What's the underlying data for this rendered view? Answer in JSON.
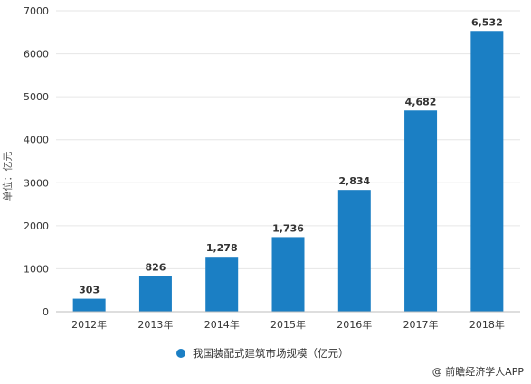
{
  "chart_data": {
    "type": "bar",
    "categories": [
      "2012年",
      "2013年",
      "2014年",
      "2015年",
      "2016年",
      "2017年",
      "2018年"
    ],
    "series": [
      {
        "name": "我国装配式建筑市场规模（亿元）",
        "values": [
          303,
          826,
          1278,
          1736,
          2834,
          4682,
          6532
        ],
        "labels": [
          "303",
          "826",
          "1,278",
          "1,736",
          "2,834",
          "4,682",
          "6,532"
        ],
        "color": "#1b7fc4"
      }
    ],
    "ylabel": "单位：亿元",
    "ylim": [
      0,
      7000
    ],
    "yticks": [
      "0",
      "1000",
      "2000",
      "3000",
      "4000",
      "5000",
      "6000",
      "7000"
    ],
    "grid": true,
    "legend": "bottom"
  },
  "credit": "@ 前瞻经济学人APP"
}
